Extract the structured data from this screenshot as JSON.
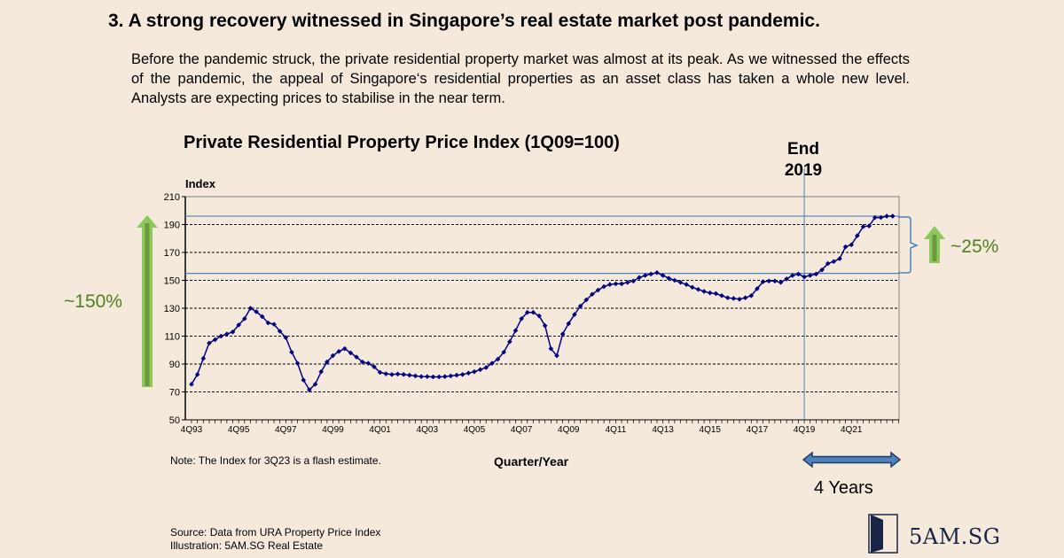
{
  "headline": "3. A strong recovery witnessed in Singapore’s real estate market post pandemic.",
  "intro": "Before the pandemic struck, the private residential property market was almost at its peak. As we witnessed the effects of the pandemic, the appeal of Singapore‘s residential properties as an asset class has taken a whole new level. Analysts are expecting prices to stabilise in the near term.",
  "annotations": {
    "end_label_line1": "End",
    "end_label_line2": "2019",
    "long_term_growth": "~150%",
    "recent_growth": "~25%",
    "period_label": "4 Years",
    "note": "Note: The Index for 3Q23 is a flash estimate."
  },
  "footer": {
    "source": "Source: Data from URA Property Price Index",
    "illustration": "Illustration: 5AM.SG Real Estate",
    "logo": "5AM.SG"
  },
  "colors": {
    "background": "#f5e9dc",
    "series": "#000080",
    "reference_line": "#4f81bd",
    "growth_arrow": "#8dc85a",
    "growth_text": "#4f7f1e",
    "bracket": "#4f81bd",
    "period_arrow": "#4f81bd"
  },
  "chart_data": {
    "type": "line",
    "title": "Private Residential Property Price Index (1Q09=100)",
    "xlabel": "Quarter/Year",
    "ylabel": "Index",
    "ylim": [
      50,
      210
    ],
    "yticks": [
      50,
      70,
      90,
      110,
      130,
      150,
      170,
      190,
      210
    ],
    "xtick_labels": [
      "4Q93",
      "4Q95",
      "4Q97",
      "4Q99",
      "4Q01",
      "4Q03",
      "4Q05",
      "4Q07",
      "4Q09",
      "4Q11",
      "4Q13",
      "4Q15",
      "4Q17",
      "4Q19",
      "4Q21"
    ],
    "grid": "horizontal dashed",
    "x_start": "4Q93",
    "x_end": "3Q23",
    "reference_lines": {
      "vertical_at": "4Q19",
      "horizontal_values": [
        155,
        196
      ]
    },
    "series": [
      {
        "name": "Private Residential Property Price Index",
        "values": [
          75.5,
          82.5,
          94,
          105,
          107.5,
          110,
          111.5,
          113,
          118,
          122.5,
          130,
          127.5,
          124,
          119.5,
          118.5,
          113.5,
          109,
          98.5,
          90.5,
          78.5,
          71.5,
          75.5,
          84.5,
          91.5,
          96,
          99,
          101,
          98,
          95,
          91.5,
          90.5,
          88,
          84,
          83,
          82.5,
          82.8,
          82.5,
          82,
          81.5,
          81,
          81,
          80.8,
          80.8,
          81,
          81.5,
          82,
          82.5,
          83.5,
          84.5,
          86,
          87.5,
          90.5,
          93.5,
          98.5,
          106,
          114,
          122.5,
          127,
          127,
          124.5,
          117.5,
          101,
          96,
          111.5,
          119,
          125.5,
          131.5,
          136,
          140,
          143,
          145.5,
          147,
          147.5,
          147.5,
          148.5,
          149.5,
          152,
          153.5,
          154.5,
          155.5,
          153.5,
          151.5,
          150,
          148.5,
          147,
          145,
          143.5,
          142,
          141,
          140.5,
          139,
          137.5,
          137,
          136.5,
          137.5,
          139,
          144,
          149,
          149.5,
          149.5,
          148.5,
          151,
          153.5,
          154.5,
          152.5,
          153.5,
          154.5,
          157.5,
          162,
          163.5,
          165.5,
          174,
          175.5,
          182,
          188.5,
          189,
          195,
          195,
          196,
          196
        ]
      }
    ]
  }
}
